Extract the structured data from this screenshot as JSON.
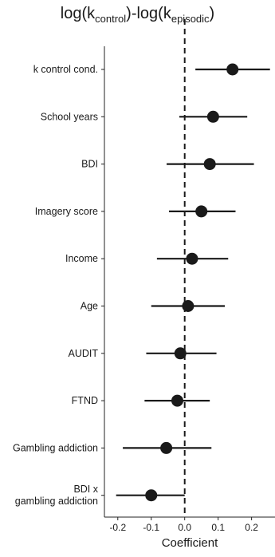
{
  "chart_data": {
    "type": "forest",
    "title_prefix": "log(k",
    "title_sub1": "control",
    "title_mid": ")-log(k",
    "title_sub2": "episodic",
    "title_suffix": ")",
    "xlabel": "Coefficient",
    "xlim": [
      -0.24,
      0.27
    ],
    "xticks": [
      -0.2,
      -0.1,
      0.0,
      0.1,
      0.2
    ],
    "xtick_labels": [
      "-0.2",
      "-0.1",
      "0.0",
      "0.1",
      "0.2"
    ],
    "reference_line": 0,
    "rows": [
      {
        "label": [
          "k control cond."
        ],
        "estimate": 0.143,
        "lower": 0.032,
        "upper": 0.255
      },
      {
        "label": [
          "School years"
        ],
        "estimate": 0.085,
        "lower": -0.016,
        "upper": 0.187
      },
      {
        "label": [
          "BDI"
        ],
        "estimate": 0.075,
        "lower": -0.054,
        "upper": 0.207
      },
      {
        "label": [
          "Imagery score"
        ],
        "estimate": 0.05,
        "lower": -0.047,
        "upper": 0.152
      },
      {
        "label": [
          "Income"
        ],
        "estimate": 0.022,
        "lower": -0.083,
        "upper": 0.13
      },
      {
        "label": [
          "Age"
        ],
        "estimate": 0.01,
        "lower": -0.1,
        "upper": 0.12
      },
      {
        "label": [
          "AUDIT"
        ],
        "estimate": -0.013,
        "lower": -0.115,
        "upper": 0.095
      },
      {
        "label": [
          "FTND"
        ],
        "estimate": -0.022,
        "lower": -0.12,
        "upper": 0.075
      },
      {
        "label": [
          "Gambling addiction"
        ],
        "estimate": -0.055,
        "lower": -0.185,
        "upper": 0.08
      },
      {
        "label": [
          "BDI x",
          "gambling addiction"
        ],
        "estimate": -0.1,
        "lower": -0.205,
        "upper": 0.0
      }
    ]
  }
}
